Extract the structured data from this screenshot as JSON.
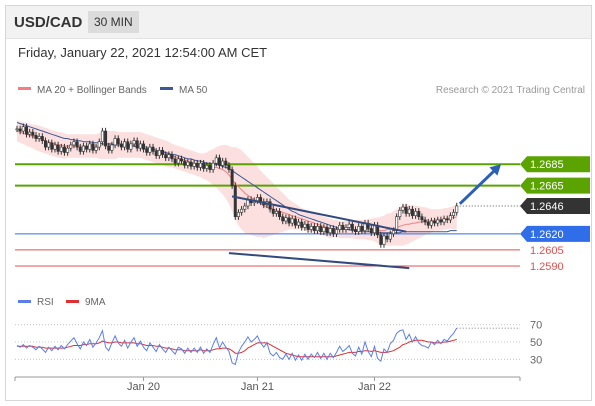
{
  "header": {
    "symbol": "USD/CAD",
    "interval": "30 MIN"
  },
  "subheader": {
    "datetime": "Friday, January 22, 2021 12:54:00 AM CET"
  },
  "colors": {
    "ma20": "#f08080",
    "bollinger": "#fbd9d9",
    "ma50": "#3b5998",
    "resistance": "#5aa300",
    "support_blue": "#2f6ee8",
    "support_red": "#e05050",
    "current": "#333333",
    "rsi": "#5b7fe8",
    "rsi_ma": "#e03030",
    "candle": "#333333",
    "arrow": "#2b5fb8",
    "channel": "#334a7f"
  },
  "chart_data": {
    "type": "line",
    "price_panel": {
      "legend": [
        {
          "name": "MA 20 + Bollinger Bands",
          "color": "#f08080"
        },
        {
          "name": "MA 50",
          "color": "#3b5998"
        }
      ],
      "credit": "Research © 2021 Trading Central",
      "ylim": [
        1.2575,
        1.2745
      ],
      "x_range": [
        0,
        160
      ],
      "price_series": [
        1.2718,
        1.2716,
        1.272,
        1.2713,
        1.2715,
        1.2712,
        1.2709,
        1.2711,
        1.2707,
        1.2701,
        1.2705,
        1.2699,
        1.2703,
        1.2697,
        1.2701,
        1.2696,
        1.27,
        1.2703,
        1.2706,
        1.2701,
        1.2697,
        1.2702,
        1.2699,
        1.2704,
        1.2698,
        1.2701,
        1.2706,
        1.2716,
        1.2702,
        1.2698,
        1.2703,
        1.2709,
        1.2704,
        1.2701,
        1.2706,
        1.2699,
        1.2704,
        1.2707,
        1.27,
        1.2704,
        1.2699,
        1.2696,
        1.2701,
        1.2697,
        1.2693,
        1.2698,
        1.2694,
        1.2691,
        1.2694,
        1.269,
        1.2686,
        1.269,
        1.2688,
        1.2684,
        1.2687,
        1.2683,
        1.2686,
        1.2682,
        1.2686,
        1.2681,
        1.2684,
        1.268,
        1.2686,
        1.2691,
        1.2684,
        1.2688,
        1.2684,
        1.268,
        1.2665,
        1.2636,
        1.264,
        1.2643,
        1.2646,
        1.2652,
        1.2649,
        1.2651,
        1.2654,
        1.265,
        1.2647,
        1.265,
        1.2643,
        1.2639,
        1.2641,
        1.2636,
        1.2632,
        1.2635,
        1.263,
        1.2634,
        1.2628,
        1.2631,
        1.2626,
        1.2629,
        1.2624,
        1.2627,
        1.2623,
        1.2627,
        1.2622,
        1.2626,
        1.2621,
        1.2625,
        1.262,
        1.2624,
        1.2628,
        1.2624,
        1.2626,
        1.2629,
        1.2624,
        1.2622,
        1.2627,
        1.2623,
        1.263,
        1.2625,
        1.2621,
        1.2628,
        1.2619,
        1.261,
        1.2618,
        1.2615,
        1.262,
        1.2623,
        1.2636,
        1.2642,
        1.2645,
        1.2639,
        1.2643,
        1.2637,
        1.2641,
        1.2636,
        1.2633,
        1.2631,
        1.2628,
        1.2632,
        1.263,
        1.2633,
        1.2631,
        1.2634,
        1.2633,
        1.2637,
        1.264,
        1.2646
      ],
      "ma20": [
        1.2716,
        1.2715,
        1.2714,
        1.2713,
        1.2712,
        1.2711,
        1.271,
        1.2709,
        1.2708,
        1.2707,
        1.2706,
        1.2705,
        1.2704,
        1.2703,
        1.2703,
        1.2702,
        1.2702,
        1.2702,
        1.2702,
        1.2702,
        1.2702,
        1.2702,
        1.2702,
        1.2702,
        1.2702,
        1.2702,
        1.2702,
        1.2703,
        1.2703,
        1.2703,
        1.2703,
        1.2703,
        1.2703,
        1.2703,
        1.2703,
        1.2703,
        1.2703,
        1.2703,
        1.2703,
        1.2703,
        1.2702,
        1.2701,
        1.27,
        1.2699,
        1.2698,
        1.2697,
        1.2696,
        1.2695,
        1.2694,
        1.2693,
        1.2692,
        1.2691,
        1.269,
        1.2689,
        1.2688,
        1.2687,
        1.2686,
        1.2685,
        1.2684,
        1.2683,
        1.2683,
        1.2683,
        1.2682,
        1.2682,
        1.2681,
        1.268,
        1.2678,
        1.2675,
        1.2671,
        1.2667,
        1.2664,
        1.2661,
        1.2658,
        1.2656,
        1.2654,
        1.2652,
        1.265,
        1.2648,
        1.2646,
        1.2645,
        1.2644,
        1.2643,
        1.2642,
        1.2641,
        1.264,
        1.2639,
        1.2638,
        1.2637,
        1.2636,
        1.2635,
        1.2634,
        1.2633,
        1.2632,
        1.2631,
        1.263,
        1.2629,
        1.2628,
        1.2627,
        1.2626,
        1.2625,
        1.2625,
        1.2625,
        1.2624,
        1.2624,
        1.2624,
        1.2624,
        1.2624,
        1.2624,
        1.2624,
        1.2624,
        1.2624,
        1.2624,
        1.2624,
        1.2624,
        1.2623,
        1.2623,
        1.2623,
        1.2624,
        1.2624,
        1.2625,
        1.2626,
        1.2627,
        1.2628,
        1.2629,
        1.2629,
        1.263,
        1.263,
        1.2631,
        1.2631,
        1.2632,
        1.2632,
        1.2632,
        1.2633,
        1.2633,
        1.2633,
        1.2634,
        1.2634,
        1.2635,
        1.2635,
        1.2636
      ],
      "bb_width": [
        0.001,
        0.001,
        0.001,
        0.0011,
        0.0011,
        0.0011,
        0.0012,
        0.0012,
        0.0012,
        0.0012,
        0.0012,
        0.0012,
        0.0012,
        0.0012,
        0.0012,
        0.0012,
        0.0011,
        0.0011,
        0.0011,
        0.0011,
        0.0011,
        0.0011,
        0.0011,
        0.0011,
        0.0011,
        0.0011,
        0.0012,
        0.0013,
        0.0013,
        0.0013,
        0.0013,
        0.0013,
        0.0012,
        0.0012,
        0.0012,
        0.0012,
        0.0012,
        0.0012,
        0.0012,
        0.0012,
        0.0012,
        0.0012,
        0.0012,
        0.0012,
        0.0012,
        0.0012,
        0.0012,
        0.0012,
        0.0012,
        0.0011,
        0.0011,
        0.0011,
        0.0011,
        0.0011,
        0.0011,
        0.0011,
        0.0011,
        0.0011,
        0.0011,
        0.0012,
        0.0013,
        0.0015,
        0.0017,
        0.0019,
        0.0021,
        0.0023,
        0.0025,
        0.0027,
        0.003,
        0.0034,
        0.0036,
        0.0037,
        0.0037,
        0.0036,
        0.0035,
        0.0034,
        0.0033,
        0.0031,
        0.003,
        0.0028,
        0.0026,
        0.0024,
        0.0022,
        0.002,
        0.0018,
        0.0016,
        0.0014,
        0.0013,
        0.0012,
        0.0011,
        0.001,
        0.001,
        0.001,
        0.0009,
        0.0009,
        0.0009,
        0.0009,
        0.0009,
        0.0009,
        0.0009,
        0.0008,
        0.0008,
        0.0008,
        0.0008,
        0.0008,
        0.0008,
        0.0008,
        0.0009,
        0.0009,
        0.0009,
        0.0009,
        0.001,
        0.001,
        0.0011,
        0.0012,
        0.0013,
        0.0014,
        0.0015,
        0.0015,
        0.0016,
        0.0017,
        0.0018,
        0.0019,
        0.0019,
        0.0018,
        0.0017,
        0.0016,
        0.0015,
        0.0014,
        0.0013,
        0.0012,
        0.0011,
        0.001,
        0.001,
        0.001,
        0.001,
        0.001,
        0.001,
        0.0011,
        0.0012
      ],
      "ma50": [
        1.2724,
        1.2723,
        1.2722,
        1.2721,
        1.272,
        1.2719,
        1.2718,
        1.2717,
        1.2716,
        1.2715,
        1.2714,
        1.2713,
        1.2712,
        1.2711,
        1.271,
        1.2709,
        1.2709,
        1.2708,
        1.2708,
        1.2707,
        1.2707,
        1.2706,
        1.2706,
        1.2706,
        1.2705,
        1.2705,
        1.2705,
        1.2704,
        1.2704,
        1.2704,
        1.2704,
        1.2703,
        1.2703,
        1.2703,
        1.2703,
        1.2702,
        1.2702,
        1.2702,
        1.2701,
        1.2701,
        1.27,
        1.27,
        1.2699,
        1.2699,
        1.2698,
        1.2697,
        1.2697,
        1.2696,
        1.2695,
        1.2694,
        1.2694,
        1.2693,
        1.2692,
        1.2691,
        1.269,
        1.269,
        1.2689,
        1.2688,
        1.2688,
        1.2687,
        1.2686,
        1.2686,
        1.2685,
        1.2685,
        1.2684,
        1.2683,
        1.2682,
        1.2681,
        1.2679,
        1.2677,
        1.2675,
        1.2673,
        1.2671,
        1.2669,
        1.2667,
        1.2665,
        1.2663,
        1.2661,
        1.2659,
        1.2657,
        1.2655,
        1.2653,
        1.2651,
        1.2649,
        1.2647,
        1.2645,
        1.2643,
        1.2641,
        1.264,
        1.2638,
        1.2637,
        1.2636,
        1.2635,
        1.2634,
        1.2633,
        1.2632,
        1.2631,
        1.263,
        1.2629,
        1.2628,
        1.2627,
        1.2626,
        1.2625,
        1.2625,
        1.2624,
        1.2624,
        1.2623,
        1.2623,
        1.2623,
        1.2622,
        1.2622,
        1.2622,
        1.2622,
        1.2621,
        1.2621,
        1.2621,
        1.2621,
        1.2621,
        1.2621,
        1.2621,
        1.2621,
        1.2621,
        1.2622,
        1.2622,
        1.2622,
        1.2622,
        1.2622,
        1.2622,
        1.2622,
        1.2622,
        1.2622,
        1.2622,
        1.2622,
        1.2622,
        1.2622,
        1.2622,
        1.2622,
        1.2623,
        1.2623,
        1.2623
      ],
      "levels": [
        {
          "label": "1.2685",
          "value": 1.2685,
          "kind": "resistance"
        },
        {
          "label": "1.2665",
          "value": 1.2665,
          "kind": "resistance"
        },
        {
          "label": "1.2646",
          "value": 1.2646,
          "kind": "current"
        },
        {
          "label": "1.2620",
          "value": 1.262,
          "kind": "support_blue"
        },
        {
          "label": "1.2605",
          "value": 1.2605,
          "kind": "support_red"
        },
        {
          "label": "1.2590",
          "value": 1.259,
          "kind": "support_red"
        }
      ],
      "trendlines": [
        {
          "from": [
            68,
            1.2655
          ],
          "to": [
            123,
            1.2622
          ]
        },
        {
          "from": [
            67,
            1.2602
          ],
          "to": [
            124,
            1.2588
          ]
        }
      ],
      "projection_arrow": {
        "from": [
          140,
          1.2648
        ],
        "to": [
          153,
          1.2685
        ]
      },
      "x_ticks": [
        {
          "label": "Jan 20",
          "x": 40
        },
        {
          "label": "Jan 21",
          "x": 76
        },
        {
          "label": "Jan 22",
          "x": 113
        }
      ]
    },
    "rsi_panel": {
      "legend": [
        {
          "name": "RSI",
          "color": "#5b7fe8"
        },
        {
          "name": "9MA",
          "color": "#e03030"
        }
      ],
      "ylim": [
        20,
        80
      ],
      "y_ticks": [
        70,
        50,
        30
      ],
      "rsi": [
        46,
        44,
        47,
        43,
        46,
        44,
        41,
        45,
        42,
        38,
        44,
        40,
        45,
        41,
        46,
        42,
        47,
        51,
        55,
        48,
        42,
        50,
        46,
        53,
        44,
        49,
        55,
        63,
        44,
        40,
        49,
        57,
        49,
        45,
        52,
        43,
        50,
        55,
        45,
        51,
        44,
        40,
        49,
        44,
        39,
        47,
        42,
        38,
        44,
        40,
        36,
        44,
        42,
        37,
        43,
        38,
        43,
        38,
        44,
        37,
        42,
        38,
        47,
        55,
        43,
        50,
        44,
        39,
        26,
        24,
        38,
        45,
        50,
        56,
        50,
        53,
        57,
        49,
        44,
        49,
        37,
        34,
        38,
        32,
        30,
        36,
        30,
        37,
        29,
        35,
        29,
        36,
        30,
        36,
        32,
        38,
        31,
        37,
        30,
        37,
        32,
        38,
        45,
        39,
        42,
        46,
        37,
        34,
        44,
        36,
        50,
        39,
        33,
        45,
        31,
        28,
        42,
        38,
        48,
        52,
        60,
        63,
        64,
        53,
        59,
        50,
        56,
        49,
        46,
        45,
        43,
        50,
        47,
        52,
        48,
        53,
        51,
        56,
        60,
        66
      ],
      "rsi_ma": [
        45,
        45,
        45,
        45,
        45,
        45,
        44,
        44,
        44,
        43,
        43,
        43,
        43,
        43,
        43,
        43,
        44,
        45,
        46,
        46,
        46,
        47,
        47,
        48,
        48,
        48,
        49,
        51,
        50,
        49,
        49,
        50,
        50,
        49,
        49,
        49,
        49,
        49,
        48,
        48,
        47,
        46,
        46,
        46,
        45,
        45,
        44,
        43,
        43,
        42,
        41,
        41,
        41,
        40,
        40,
        40,
        40,
        40,
        41,
        40,
        40,
        40,
        41,
        42,
        42,
        43,
        43,
        42,
        40,
        37,
        37,
        38,
        40,
        43,
        45,
        47,
        49,
        49,
        49,
        49,
        47,
        45,
        43,
        41,
        39,
        37,
        36,
        35,
        34,
        33,
        33,
        33,
        33,
        33,
        33,
        33,
        33,
        33,
        33,
        33,
        33,
        34,
        35,
        36,
        37,
        38,
        38,
        38,
        39,
        39,
        40,
        40,
        39,
        40,
        39,
        38,
        38,
        38,
        39,
        40,
        42,
        44,
        47,
        48,
        50,
        51,
        52,
        52,
        52,
        51,
        50,
        50,
        49,
        49,
        49,
        50,
        50,
        51,
        52,
        53
      ]
    }
  }
}
